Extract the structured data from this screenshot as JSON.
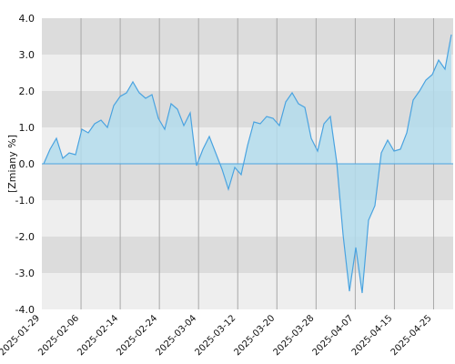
{
  "chart_data": {
    "type": "area",
    "ylabel": "[Zmiany %]",
    "ylim": [
      -4.0,
      4.0
    ],
    "yticks": [
      "4.0",
      "3.0",
      "2.0",
      "1.0",
      "0.0",
      "-1.0",
      "-2.0",
      "-3.0",
      "-4.0"
    ],
    "xticks": [
      "2025-01-29",
      "2025-02-06",
      "2025-02-14",
      "2025-02-24",
      "2025-03-04",
      "2025-03-12",
      "2025-03-20",
      "2025-03-28",
      "2025-04-07",
      "2025-04-15",
      "2025-04-25"
    ],
    "grid": true,
    "colors": {
      "line": "#4aa3e0",
      "fill": "#b3dcec",
      "band_dark": "#dcdcdc",
      "band_light": "#eeeeee"
    },
    "series": [
      {
        "values": [
          0.0,
          0.4,
          0.7,
          0.15,
          0.3,
          0.25,
          0.95,
          0.85,
          1.1,
          1.2,
          1.0,
          1.6,
          1.85,
          1.95,
          2.25,
          1.95,
          1.8,
          1.9,
          1.25,
          0.95,
          1.65,
          1.5,
          1.05,
          1.4,
          -0.05,
          0.4,
          0.75,
          0.3,
          -0.15,
          -0.7,
          -0.1,
          -0.3,
          0.5,
          1.15,
          1.1,
          1.3,
          1.25,
          1.05,
          1.7,
          1.95,
          1.65,
          1.55,
          0.7,
          0.35,
          1.1,
          1.3,
          0.05,
          -1.95,
          -3.5,
          -2.3,
          -3.55,
          -1.55,
          -1.15,
          0.3,
          0.65,
          0.35,
          0.4,
          0.85,
          1.75,
          2.0,
          2.3,
          2.45,
          2.85,
          2.6,
          3.55
        ]
      }
    ]
  }
}
